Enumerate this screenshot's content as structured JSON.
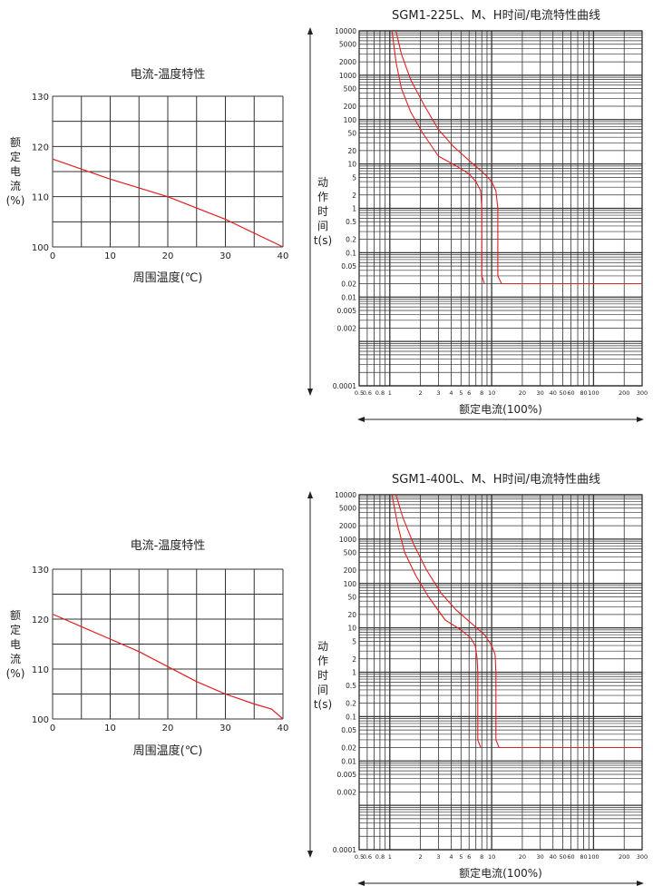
{
  "chart_data": [
    {
      "id": "temp1",
      "type": "line",
      "title": "电流-温度特性",
      "ylabel_chars": [
        "额",
        "定",
        "电",
        "流",
        "(%)"
      ],
      "xlabel": "周围温度(℃)",
      "xlim": [
        0,
        40
      ],
      "ylim": [
        100,
        130
      ],
      "xticks": [
        0,
        10,
        20,
        30,
        40
      ],
      "yticks": [
        100,
        110,
        120,
        130
      ],
      "grid": true,
      "series": [
        {
          "color": "#e02020",
          "points": [
            [
              0,
              117.5
            ],
            [
              10,
              113.5
            ],
            [
              20,
              110
            ],
            [
              30,
              105.5
            ],
            [
              40,
              100
            ]
          ]
        }
      ]
    },
    {
      "id": "tc1",
      "type": "line",
      "title": "SGM1-225L、M、H时间/电流特性曲线",
      "ylabel_chars": [
        "动",
        "作",
        "时",
        "间",
        "t(s)"
      ],
      "xlabel": "额定电流(100%)",
      "xscale": "log",
      "yscale": "log",
      "xlim": [
        0.5,
        300
      ],
      "ylim": [
        0.0001,
        10000
      ],
      "xticks": [
        "0.5",
        "0.6",
        "0.8",
        "1",
        "2",
        "3",
        "4",
        "5",
        "6",
        "8",
        "10",
        "20",
        "30",
        "40",
        "50",
        "60",
        "80",
        "100",
        "200",
        "300"
      ],
      "yticks": [
        "10000",
        "5000",
        "2000",
        "1000",
        "500",
        "200",
        "100",
        "50",
        "20",
        "10",
        "5",
        "2",
        "1",
        "0.5",
        "0.2",
        "0.1",
        "0.05",
        "0.02",
        "0.01",
        "0.005",
        "0.002",
        "0.0001"
      ],
      "grid": true,
      "series": [
        {
          "color": "#e02020",
          "points": [
            [
              1.05,
              10000
            ],
            [
              1.15,
              2000
            ],
            [
              1.3,
              500
            ],
            [
              1.6,
              150
            ],
            [
              2.1,
              50
            ],
            [
              3,
              15
            ],
            [
              4.5,
              9
            ],
            [
              6,
              6
            ],
            [
              7,
              4
            ],
            [
              7.8,
              2.5
            ],
            [
              8,
              1
            ],
            [
              8,
              0.03
            ],
            [
              8.5,
              0.02
            ]
          ]
        },
        {
          "color": "#e02020",
          "points": [
            [
              1.15,
              10000
            ],
            [
              1.3,
              3000
            ],
            [
              1.6,
              800
            ],
            [
              2.2,
              200
            ],
            [
              3,
              60
            ],
            [
              4.2,
              25
            ],
            [
              6,
              12
            ],
            [
              8.5,
              6
            ],
            [
              10,
              4
            ],
            [
              11,
              2.5
            ],
            [
              11.5,
              1
            ],
            [
              11.5,
              0.03
            ],
            [
              12.5,
              0.02
            ],
            [
              300,
              0.02
            ]
          ]
        }
      ]
    },
    {
      "id": "temp2",
      "type": "line",
      "title": "电流-温度特性",
      "ylabel_chars": [
        "额",
        "定",
        "电",
        "流",
        "(%)"
      ],
      "xlabel": "周围温度(℃)",
      "xlim": [
        0,
        40
      ],
      "ylim": [
        100,
        130
      ],
      "xticks": [
        0,
        10,
        20,
        30,
        40
      ],
      "yticks": [
        100,
        110,
        120,
        130
      ],
      "grid": true,
      "series": [
        {
          "color": "#e02020",
          "points": [
            [
              0,
              121
            ],
            [
              5,
              118.5
            ],
            [
              10,
              116
            ],
            [
              15,
              113.5
            ],
            [
              20,
              110.5
            ],
            [
              25,
              107.5
            ],
            [
              30,
              105
            ],
            [
              35,
              103
            ],
            [
              38,
              102
            ],
            [
              40,
              100
            ]
          ]
        }
      ]
    },
    {
      "id": "tc2",
      "type": "line",
      "title": "SGM1-400L、M、H时间/电流特性曲线",
      "ylabel_chars": [
        "动",
        "作",
        "时",
        "间",
        "t(s)"
      ],
      "xlabel": "额定电流(100%)",
      "xscale": "log",
      "yscale": "log",
      "xlim": [
        0.5,
        300
      ],
      "ylim": [
        0.0001,
        10000
      ],
      "xticks": [
        "0.5",
        "0.6",
        "0.8",
        "1",
        "2",
        "3",
        "4",
        "5",
        "6",
        "8",
        "10",
        "20",
        "30",
        "40",
        "50",
        "60",
        "80",
        "100",
        "200",
        "300"
      ],
      "yticks": [
        "10000",
        "5000",
        "2000",
        "1000",
        "500",
        "200",
        "100",
        "50",
        "20",
        "10",
        "5",
        "2",
        "1",
        "0.5",
        "0.2",
        "0.1",
        "0.05",
        "0.02",
        "0.01",
        "0.005",
        "0.002",
        "0.0001"
      ],
      "grid": true,
      "series": [
        {
          "color": "#e02020",
          "points": [
            [
              1.05,
              10000
            ],
            [
              1.2,
              2000
            ],
            [
              1.4,
              500
            ],
            [
              1.8,
              150
            ],
            [
              2.4,
              50
            ],
            [
              3.5,
              15
            ],
            [
              5,
              9
            ],
            [
              6.2,
              6
            ],
            [
              6.9,
              4
            ],
            [
              7.2,
              2
            ],
            [
              7.3,
              1
            ],
            [
              7.3,
              0.03
            ],
            [
              7.8,
              0.02
            ]
          ]
        },
        {
          "color": "#e02020",
          "points": [
            [
              1.15,
              10000
            ],
            [
              1.35,
              3000
            ],
            [
              1.7,
              800
            ],
            [
              2.3,
              200
            ],
            [
              3.2,
              60
            ],
            [
              4.5,
              25
            ],
            [
              6.5,
              12
            ],
            [
              8.5,
              7
            ],
            [
              10,
              4
            ],
            [
              10.8,
              2.5
            ],
            [
              11,
              1
            ],
            [
              11,
              0.03
            ],
            [
              11.8,
              0.02
            ],
            [
              300,
              0.02
            ]
          ]
        }
      ]
    }
  ]
}
